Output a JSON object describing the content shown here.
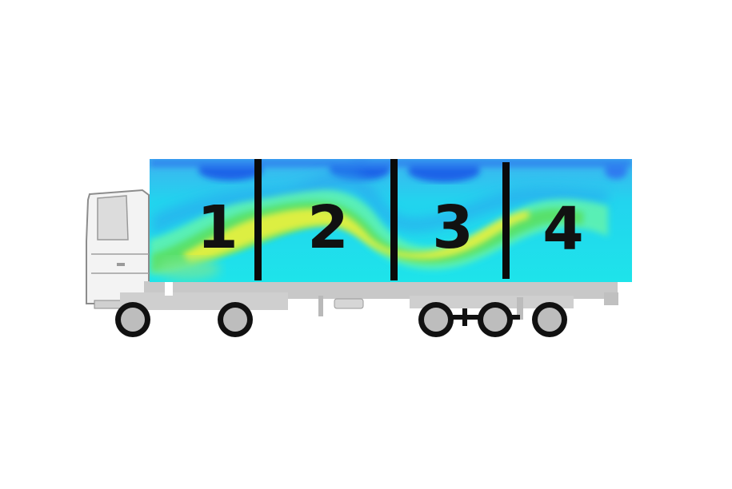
{
  "figure": {
    "type": "trailer airflow / temperature field diagram",
    "zones": [
      {
        "label": "1"
      },
      {
        "label": "2"
      },
      {
        "label": "3"
      },
      {
        "label": "4"
      }
    ]
  },
  "colors": {
    "background": "#ffffff",
    "cold_dark_blue": "#1f63e8",
    "cool_blue": "#2aa0ee",
    "cyan": "#19dcea",
    "mint": "#60f2b0",
    "green": "#58e068",
    "yellow": "#e4f040",
    "divider": "#0a0a0a",
    "chassis": "#c8c8c8",
    "tire": "#111111",
    "hub": "#bdbdbd",
    "cab": "#f3f3f3"
  }
}
